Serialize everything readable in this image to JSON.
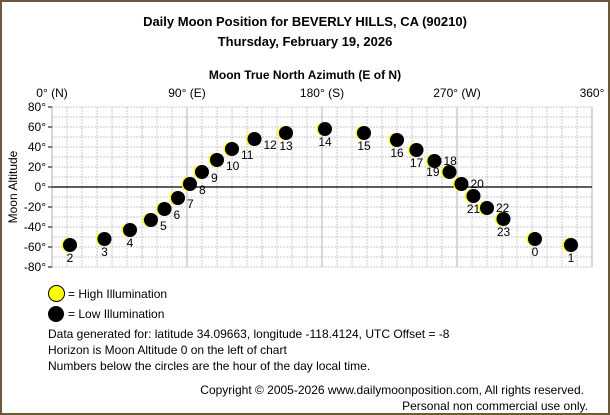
{
  "chart_data": {
    "type": "scatter",
    "title": "Daily Moon Position for BEVERLY HILLS, CA (90210)",
    "subtitle": "Thursday, February 19, 2026",
    "xlabel": "Moon True North Azimuth (E of N)",
    "ylabel": "Moon Altitude",
    "xlim": [
      0,
      360
    ],
    "ylim": [
      -80,
      80
    ],
    "x_ticks": [
      {
        "value": 0,
        "label": "0° (N)"
      },
      {
        "value": 90,
        "label": "90° (E)"
      },
      {
        "value": 180,
        "label": "180° (S)"
      },
      {
        "value": 270,
        "label": "270° (W)"
      },
      {
        "value": 360,
        "label": "360°"
      }
    ],
    "y_ticks": [
      {
        "value": 80,
        "label": "80°"
      },
      {
        "value": 60,
        "label": "60°"
      },
      {
        "value": 40,
        "label": "40°"
      },
      {
        "value": 20,
        "label": "20°"
      },
      {
        "value": 0,
        "label": "0°"
      },
      {
        "value": -20,
        "label": "-20°"
      },
      {
        "value": -40,
        "label": "-40°"
      },
      {
        "value": -60,
        "label": "-60°"
      },
      {
        "value": -80,
        "label": "-80°"
      }
    ],
    "grid": true,
    "grid_step": 10,
    "points": [
      {
        "hour": "2",
        "azimuth": 12,
        "altitude": -58
      },
      {
        "hour": "3",
        "azimuth": 35,
        "altitude": -52
      },
      {
        "hour": "4",
        "azimuth": 52,
        "altitude": -43
      },
      {
        "hour": "5",
        "azimuth": 66,
        "altitude": -33
      },
      {
        "hour": "6",
        "azimuth": 75,
        "altitude": -22
      },
      {
        "hour": "7",
        "azimuth": 84,
        "altitude": -11
      },
      {
        "hour": "8",
        "azimuth": 92,
        "altitude": 3
      },
      {
        "hour": "9",
        "azimuth": 100,
        "altitude": 15
      },
      {
        "hour": "10",
        "azimuth": 110,
        "altitude": 27
      },
      {
        "hour": "11",
        "azimuth": 120,
        "altitude": 38
      },
      {
        "hour": "12",
        "azimuth": 135,
        "altitude": 48
      },
      {
        "hour": "13",
        "azimuth": 156,
        "altitude": 54
      },
      {
        "hour": "14",
        "azimuth": 182,
        "altitude": 58
      },
      {
        "hour": "15",
        "azimuth": 208,
        "altitude": 54
      },
      {
        "hour": "16",
        "azimuth": 230,
        "altitude": 47
      },
      {
        "hour": "17",
        "azimuth": 243,
        "altitude": 37
      },
      {
        "hour": "18",
        "azimuth": 255,
        "altitude": 26
      },
      {
        "hour": "19",
        "azimuth": 265,
        "altitude": 15
      },
      {
        "hour": "20",
        "azimuth": 273,
        "altitude": 3
      },
      {
        "hour": "21",
        "azimuth": 281,
        "altitude": -9
      },
      {
        "hour": "22",
        "azimuth": 290,
        "altitude": -21
      },
      {
        "hour": "23",
        "azimuth": 301,
        "altitude": -32
      },
      {
        "hour": "0",
        "azimuth": 322,
        "altitude": -52
      },
      {
        "hour": "1",
        "azimuth": 346,
        "altitude": -58
      }
    ],
    "legend": [
      {
        "label": "= High Illumination",
        "color": "#ffff00"
      },
      {
        "label": "= Low Illumination",
        "color": "#000000"
      }
    ],
    "legend_placement": "bottom-left"
  },
  "notes": [
    "Data generated for: latitude 34.09663, longitude -118.4124, UTC Offset = -8",
    "Horizon is Moon Altitude 0 on the left of chart",
    "Numbers below the circles are the hour of the day local time."
  ],
  "copyright": "Copyright © 2005-2026 www.dailymoonposition.com, All rights reserved.",
  "usage": "Personal non commercial use only.",
  "colors": {
    "border": "#6b5a3a",
    "grid": "#c8c8c8",
    "high": "#ffff00",
    "low": "#000000"
  }
}
